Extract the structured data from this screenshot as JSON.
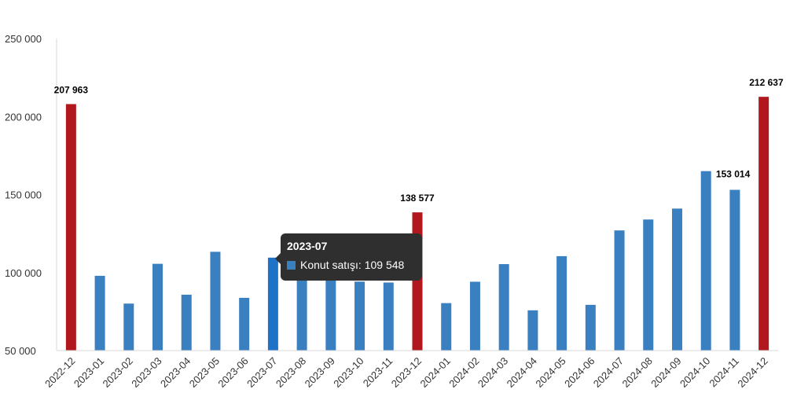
{
  "chart_data": {
    "type": "bar",
    "categories": [
      "2022-12",
      "2023-01",
      "2023-02",
      "2023-03",
      "2023-04",
      "2023-05",
      "2023-06",
      "2023-07",
      "2023-08",
      "2023-09",
      "2023-10",
      "2023-11",
      "2023-12",
      "2024-01",
      "2024-02",
      "2024-03",
      "2024-04",
      "2024-05",
      "2024-06",
      "2024-07",
      "2024-08",
      "2024-09",
      "2024-10",
      "2024-11",
      "2024-12"
    ],
    "series": [
      {
        "name": "Konut satışı",
        "values": [
          207963,
          97900,
          80100,
          105600,
          85800,
          113300,
          83800,
          109548,
          122000,
          101000,
          94200,
          93600,
          138577,
          80400,
          94100,
          105400,
          75800,
          110500,
          79300,
          127000,
          134000,
          141000,
          165000,
          153014,
          212637
        ]
      }
    ],
    "ylim": [
      50000,
      250000
    ],
    "yticks": [
      50000,
      100000,
      150000,
      200000,
      250000
    ],
    "ytick_labels": [
      "50 000",
      "100 000",
      "150 000",
      "200 000",
      "250 000"
    ],
    "data_labels": [
      {
        "index": 0,
        "text": "207 963"
      },
      {
        "index": 12,
        "text": "138 577"
      },
      {
        "index": 23,
        "text": "153 014"
      },
      {
        "index": 24,
        "text": "212 637"
      }
    ],
    "highlight_indices": [
      0,
      12,
      24
    ],
    "hovered_index": 7,
    "colors": {
      "bar": "#3a7fc0",
      "highlight": "#b0181e",
      "hover": "#1e73c7",
      "axis": "#d9d9d9",
      "tooltip_bg": "#2f2f2f"
    },
    "grid": false,
    "legend": "none"
  },
  "tooltip": {
    "title": "2023-07",
    "row": "Konut satışı: 109 548"
  }
}
